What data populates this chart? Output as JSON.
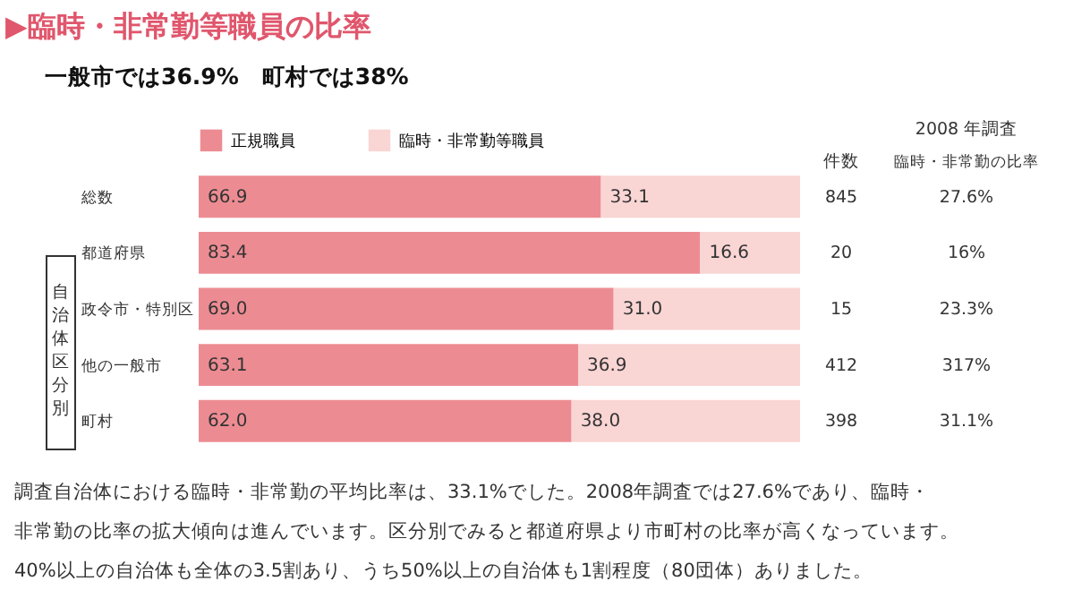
{
  "chart_data": {
    "type": "bar",
    "orientation": "horizontal",
    "stacked": true,
    "title": "▶臨時・非常勤等職員の比率",
    "subtitle": "一般市では36.9%　町村では38%",
    "categories": [
      "総数",
      "都道府県",
      "政令市・特別区",
      "他の一般市",
      "町村"
    ],
    "series": [
      {
        "name": "正規職員",
        "color": "#ec8c92",
        "values": [
          66.9,
          83.4,
          69.0,
          63.1,
          62.0
        ],
        "value_labels": [
          "66.9",
          "83.4",
          "69.0",
          "63.1",
          "62.0"
        ]
      },
      {
        "name": "臨時・非常勤等職員",
        "color": "#f9d5d4",
        "values": [
          33.1,
          16.6,
          31.0,
          36.9,
          38.0
        ],
        "value_labels": [
          "33.1",
          "16.6",
          "31.0",
          "36.9",
          "38.0"
        ]
      }
    ],
    "xlim": [
      0,
      100
    ],
    "legend": "top",
    "annotations": [
      "件数",
      "2008 年調査",
      "臨時・非常勤の比率",
      "自治体区分別",
      "　調査自治体における臨時・非常勤の平均比率は、33.1%でした。2008年調査では27.6%であり、臨時・",
      "非常勤の比率の拡大傾向は進んでいます。区分別でみると都道府県より市町村の比率が高くなっています。",
      "40%以上の自治体も全体の3.5割あり、うち50%以上の自治体も1割程度（80団体）ありました。",
      "845",
      "27.6%",
      "20",
      "16%",
      "15",
      "23.3%",
      "412",
      "317%",
      "398",
      "31.1%"
    ]
  }
}
